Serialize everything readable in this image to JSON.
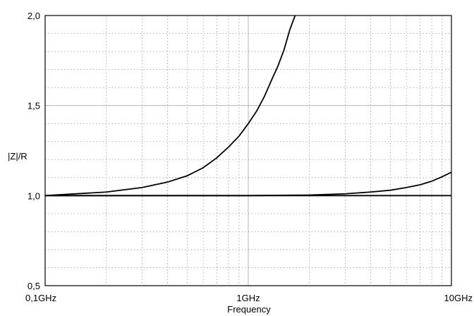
{
  "chart_data": {
    "type": "line",
    "title": "",
    "xlabel": "Frequency",
    "ylabel": "|Z|/R",
    "x_scale": "log",
    "x_unit": "GHz",
    "xlim": [
      0.1,
      10
    ],
    "ylim": [
      0.5,
      2.0
    ],
    "x_tick_values": [
      0.1,
      1,
      10
    ],
    "x_tick_labels": [
      "0,1GHz",
      "1GHz",
      "10GHz"
    ],
    "y_tick_values": [
      0.5,
      1.0,
      1.5,
      2.0
    ],
    "y_tick_labels": [
      "0,5",
      "1,0",
      "1,5",
      "2,0"
    ],
    "grid": true,
    "line_color": "#000000",
    "series": [
      {
        "x": [
          0.1,
          0.2,
          0.3,
          0.4,
          0.5,
          0.6,
          0.7,
          0.8,
          0.9,
          1.0,
          1.1,
          1.2,
          1.3,
          1.4,
          1.5,
          1.6,
          1.7
        ],
        "y": [
          1.0,
          1.02,
          1.045,
          1.075,
          1.11,
          1.155,
          1.21,
          1.27,
          1.33,
          1.4,
          1.47,
          1.55,
          1.64,
          1.72,
          1.81,
          1.92,
          2.0
        ]
      },
      {
        "x": [
          0.1,
          0.5,
          1.0,
          2.0,
          3.0,
          4.0,
          5.0,
          6.0,
          7.0,
          8.0,
          9.0,
          10.0
        ],
        "y": [
          1.0,
          1.0,
          1.0,
          1.003,
          1.01,
          1.02,
          1.03,
          1.045,
          1.06,
          1.08,
          1.105,
          1.13
        ]
      },
      {
        "x": [
          0.1,
          10.0
        ],
        "y": [
          1.0,
          1.0
        ]
      }
    ]
  }
}
